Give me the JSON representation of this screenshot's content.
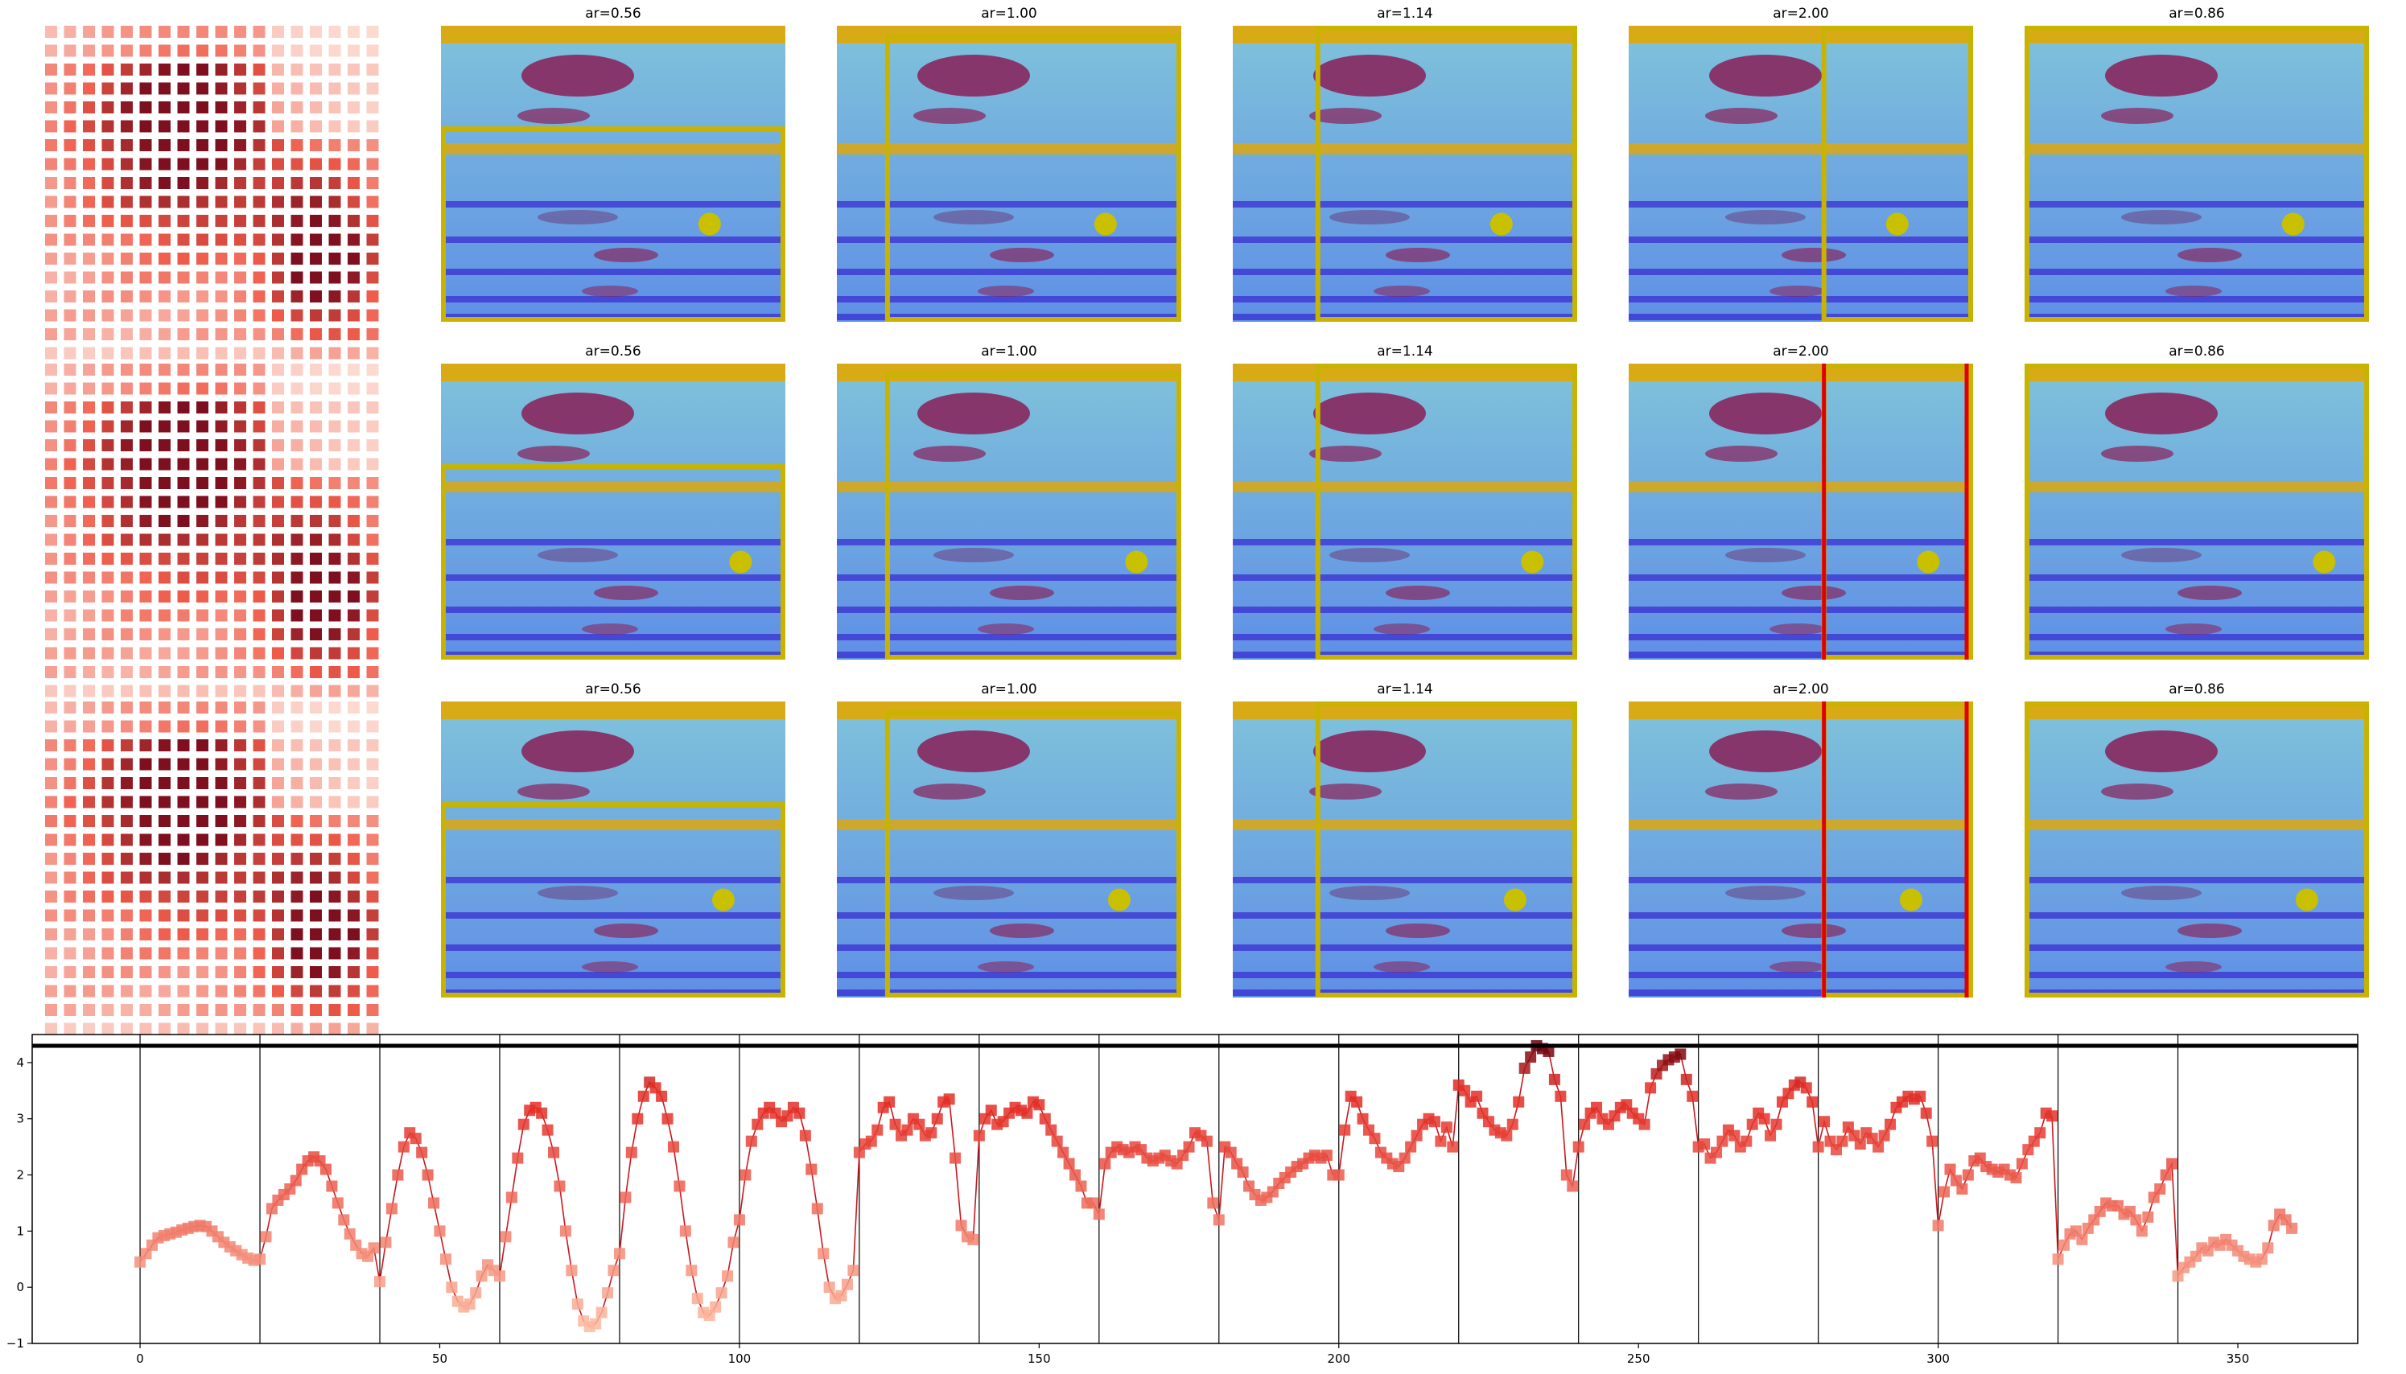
{
  "colors": {
    "marker_low": "#fcbba1",
    "marker_high": "#67000d",
    "line": "#cb181d",
    "box": "#c8b400",
    "dot": "#c8c000",
    "red_line": "#e00000",
    "vline": "#000000",
    "water_top": "#7fc3da",
    "water_bottom": "#5f8fe6",
    "lane_rope_yellow": "#e2a800",
    "lane_rope_blue": "#3a2fd0",
    "swimmer": "#8a1f58"
  },
  "icons": {
    "pool_photo": "swimming-pool-photo",
    "grid_heatmap": "grid-heatmap-icon"
  },
  "rows": [
    {
      "titles": [
        "ar=0.56",
        "ar=1.00",
        "ar=1.14",
        "ar=2.00",
        "ar=0.86"
      ],
      "dot": [
        0.78,
        0.67
      ],
      "red": [
        false,
        false,
        false,
        false,
        false
      ]
    },
    {
      "titles": [
        "ar=0.56",
        "ar=1.00",
        "ar=1.14",
        "ar=2.00",
        "ar=0.86"
      ],
      "dot": [
        0.87,
        0.67
      ],
      "red": [
        false,
        false,
        false,
        true,
        false
      ]
    },
    {
      "titles": [
        "ar=0.56",
        "ar=1.00",
        "ar=1.14",
        "ar=2.00",
        "ar=0.86"
      ],
      "dot": [
        0.82,
        0.67
      ],
      "red": [
        false,
        false,
        false,
        true,
        false
      ]
    }
  ],
  "chart_data": {
    "type": "line",
    "title": "",
    "xlabel": "",
    "ylabel": "",
    "xlim": [
      -18,
      370
    ],
    "ylim": [
      -1,
      4.5
    ],
    "xticks": [
      0,
      50,
      100,
      150,
      200,
      250,
      300,
      350
    ],
    "yticks": [
      -1,
      0,
      1,
      2,
      3,
      4
    ],
    "hline": 4.3,
    "vlines": [
      0,
      20,
      40,
      60,
      80,
      100,
      120,
      140,
      160,
      180,
      200,
      220,
      240,
      260,
      280,
      300,
      320,
      340
    ],
    "grid": false,
    "legend": "none",
    "segments": [
      [
        0.45,
        0.6,
        0.75,
        0.88,
        0.92,
        0.95,
        0.98,
        1.02,
        1.05,
        1.08,
        1.1,
        1.08,
        1.0,
        0.9,
        0.8,
        0.72,
        0.65,
        0.58,
        0.52,
        0.48
      ],
      [
        0.5,
        0.9,
        1.4,
        1.55,
        1.65,
        1.75,
        1.9,
        2.1,
        2.25,
        2.32,
        2.25,
        2.1,
        1.8,
        1.5,
        1.2,
        0.95,
        0.75,
        0.6,
        0.55,
        0.7
      ],
      [
        0.1,
        0.8,
        1.4,
        2.0,
        2.5,
        2.75,
        2.65,
        2.4,
        2.0,
        1.5,
        1.0,
        0.5,
        0.0,
        -0.25,
        -0.35,
        -0.3,
        -0.1,
        0.2,
        0.4,
        0.3
      ],
      [
        0.2,
        0.9,
        1.6,
        2.3,
        2.9,
        3.15,
        3.2,
        3.1,
        2.8,
        2.4,
        1.8,
        1.0,
        0.3,
        -0.3,
        -0.6,
        -0.7,
        -0.65,
        -0.45,
        -0.1,
        0.3
      ],
      [
        0.6,
        1.6,
        2.4,
        3.0,
        3.4,
        3.65,
        3.55,
        3.4,
        3.0,
        2.5,
        1.8,
        1.0,
        0.3,
        -0.2,
        -0.45,
        -0.5,
        -0.35,
        -0.1,
        0.2,
        0.8
      ],
      [
        1.2,
        2.0,
        2.6,
        2.9,
        3.1,
        3.2,
        3.1,
        2.95,
        3.05,
        3.2,
        3.1,
        2.7,
        2.1,
        1.4,
        0.6,
        0.0,
        -0.2,
        -0.15,
        0.05,
        0.3
      ],
      [
        2.4,
        2.55,
        2.6,
        2.8,
        3.2,
        3.3,
        2.9,
        2.7,
        2.8,
        3.0,
        2.9,
        2.7,
        2.75,
        3.0,
        3.3,
        3.35,
        2.3,
        1.1,
        0.9,
        0.85
      ],
      [
        2.7,
        3.0,
        3.15,
        2.9,
        2.95,
        3.1,
        3.2,
        3.15,
        3.1,
        3.3,
        3.25,
        3.0,
        2.8,
        2.6,
        2.4,
        2.2,
        2.0,
        1.8,
        1.5,
        1.5
      ],
      [
        1.3,
        2.2,
        2.4,
        2.5,
        2.45,
        2.4,
        2.5,
        2.45,
        2.3,
        2.25,
        2.3,
        2.35,
        2.25,
        2.2,
        2.35,
        2.5,
        2.75,
        2.7,
        2.6,
        1.5
      ],
      [
        1.2,
        2.5,
        2.4,
        2.2,
        2.05,
        1.8,
        1.65,
        1.55,
        1.6,
        1.7,
        1.85,
        1.95,
        2.05,
        2.15,
        2.2,
        2.3,
        2.35,
        2.3,
        2.35,
        2.0
      ],
      [
        2.0,
        2.8,
        3.4,
        3.3,
        3.0,
        2.8,
        2.65,
        2.4,
        2.3,
        2.2,
        2.15,
        2.3,
        2.5,
        2.7,
        2.9,
        3.0,
        2.95,
        2.6,
        2.85,
        2.5
      ],
      [
        3.6,
        3.5,
        3.3,
        3.4,
        3.1,
        2.95,
        2.8,
        2.75,
        2.7,
        2.9,
        3.3,
        3.9,
        4.1,
        4.3,
        4.25,
        4.2,
        3.7,
        3.4,
        2.0,
        1.8
      ],
      [
        2.5,
        2.9,
        3.1,
        3.2,
        3.0,
        2.9,
        3.05,
        3.2,
        3.25,
        3.1,
        3.0,
        2.9,
        3.55,
        3.8,
        3.95,
        4.05,
        4.1,
        4.15,
        3.7,
        3.4
      ],
      [
        2.5,
        2.55,
        2.3,
        2.4,
        2.6,
        2.8,
        2.7,
        2.5,
        2.6,
        2.9,
        3.1,
        3.0,
        2.7,
        2.9,
        3.3,
        3.45,
        3.6,
        3.65,
        3.55,
        3.3
      ],
      [
        2.5,
        2.95,
        2.6,
        2.45,
        2.6,
        2.85,
        2.7,
        2.55,
        2.75,
        2.65,
        2.5,
        2.7,
        2.9,
        3.2,
        3.3,
        3.4,
        3.35,
        3.4,
        3.1,
        2.6
      ],
      [
        1.1,
        1.7,
        2.1,
        1.9,
        1.75,
        2.0,
        2.25,
        2.3,
        2.15,
        2.1,
        2.05,
        2.1,
        2.0,
        1.95,
        2.2,
        2.45,
        2.6,
        2.75,
        3.1,
        3.05
      ],
      [
        0.5,
        0.75,
        0.95,
        1.0,
        0.85,
        1.05,
        1.2,
        1.35,
        1.5,
        1.45,
        1.45,
        1.3,
        1.35,
        1.2,
        1.0,
        1.25,
        1.6,
        1.75,
        2.0,
        2.2
      ],
      [
        0.2,
        0.35,
        0.45,
        0.55,
        0.7,
        0.65,
        0.8,
        0.75,
        0.85,
        0.75,
        0.65,
        0.55,
        0.5,
        0.45,
        0.5,
        0.7,
        1.1,
        1.3,
        1.2,
        1.05
      ]
    ]
  },
  "grid_heatmap": {
    "rows": 18,
    "cols": 18
  }
}
